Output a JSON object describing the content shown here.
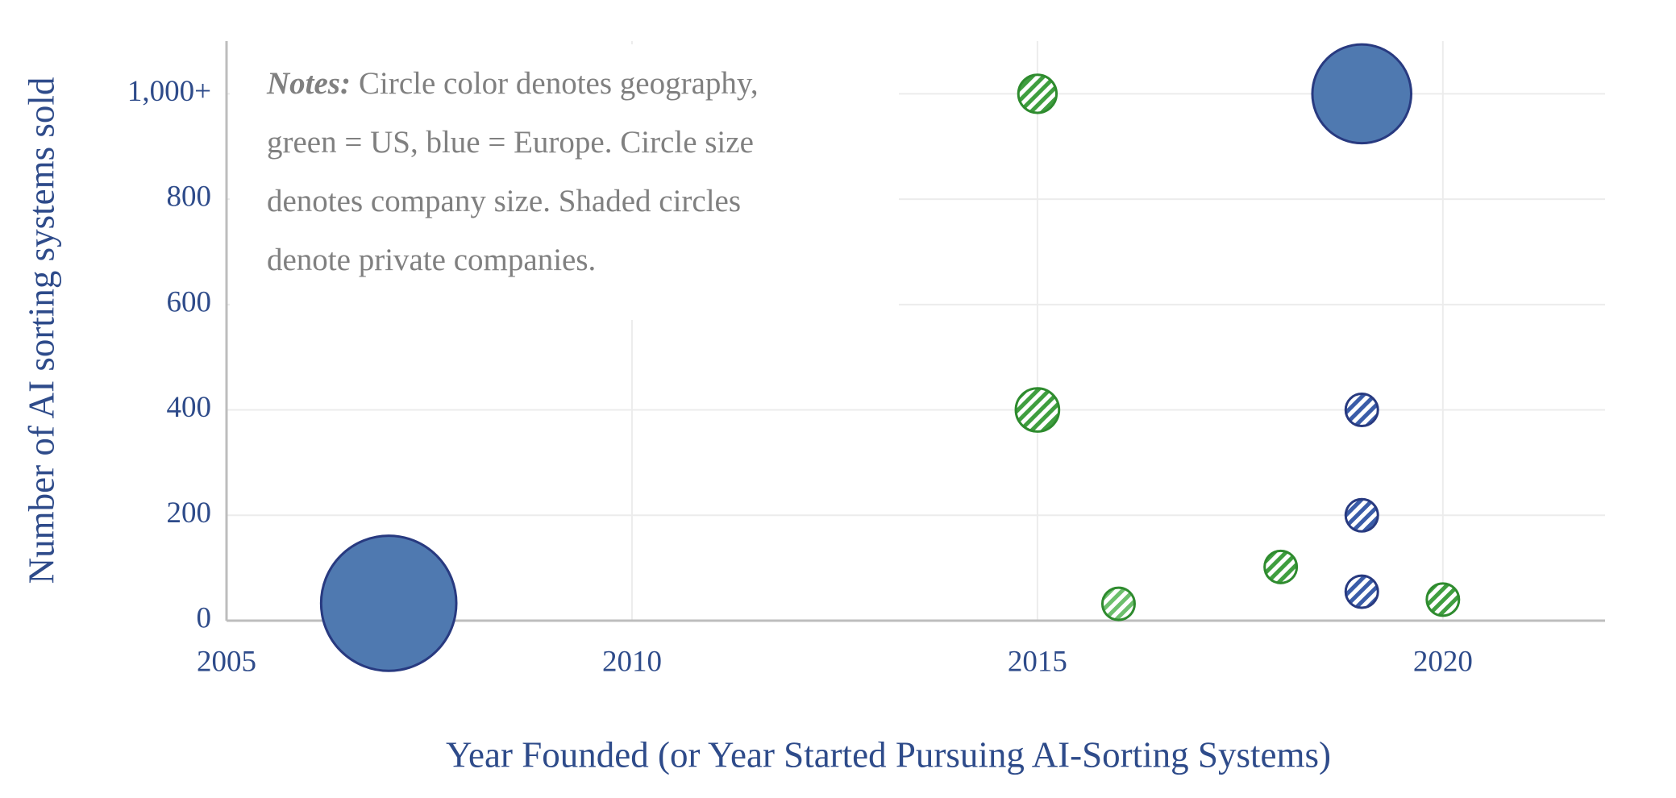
{
  "chart_data": {
    "type": "scatter",
    "xlabel": "Year Founded (or Year Started Pursuing AI-Sorting Systems)",
    "ylabel": "Number of AI sorting systems sold",
    "notes": {
      "label": "Notes:",
      "lines": [
        "Circle color denotes geography,",
        "green = US, blue = Europe. Circle size",
        "denotes company size.  Shaded circles",
        "denote private companies."
      ]
    },
    "x": [
      2007,
      2015,
      2019,
      2015,
      2019,
      2019,
      2018,
      2019,
      2016,
      2020
    ],
    "values": [
      33,
      1000,
      1000,
      400,
      400,
      200,
      102,
      55,
      32,
      40
    ],
    "sizes": [
      176,
      14,
      94,
      18,
      10,
      10,
      10,
      10,
      10,
      10
    ],
    "colors": [
      "#4f79b0",
      "#3f9e3f",
      "#4f79b0",
      "#3f9e3f",
      "#3a5ca8",
      "#3a5ca8",
      "#3f9e3f",
      "#3a5ca8",
      "#6cbf6c",
      "#3f9e3f"
    ],
    "edge_colors": [
      "#283a80",
      "#2e8b2e",
      "#283a80",
      "#2e8b2e",
      "#283a80",
      "#283a80",
      "#2e8b2e",
      "#283a80",
      "#2e8b2e",
      "#2e8b2e"
    ],
    "hatched": [
      false,
      true,
      false,
      true,
      true,
      true,
      true,
      true,
      true,
      true
    ],
    "xlim": [
      2005,
      2022
    ],
    "xticks": [
      2005,
      2010,
      2015,
      2020
    ],
    "ylim": [
      0,
      1100
    ],
    "yticks": [
      0,
      200,
      400,
      600,
      800,
      {
        "value": 1000,
        "label": "1,000+"
      }
    ],
    "grid": true
  }
}
